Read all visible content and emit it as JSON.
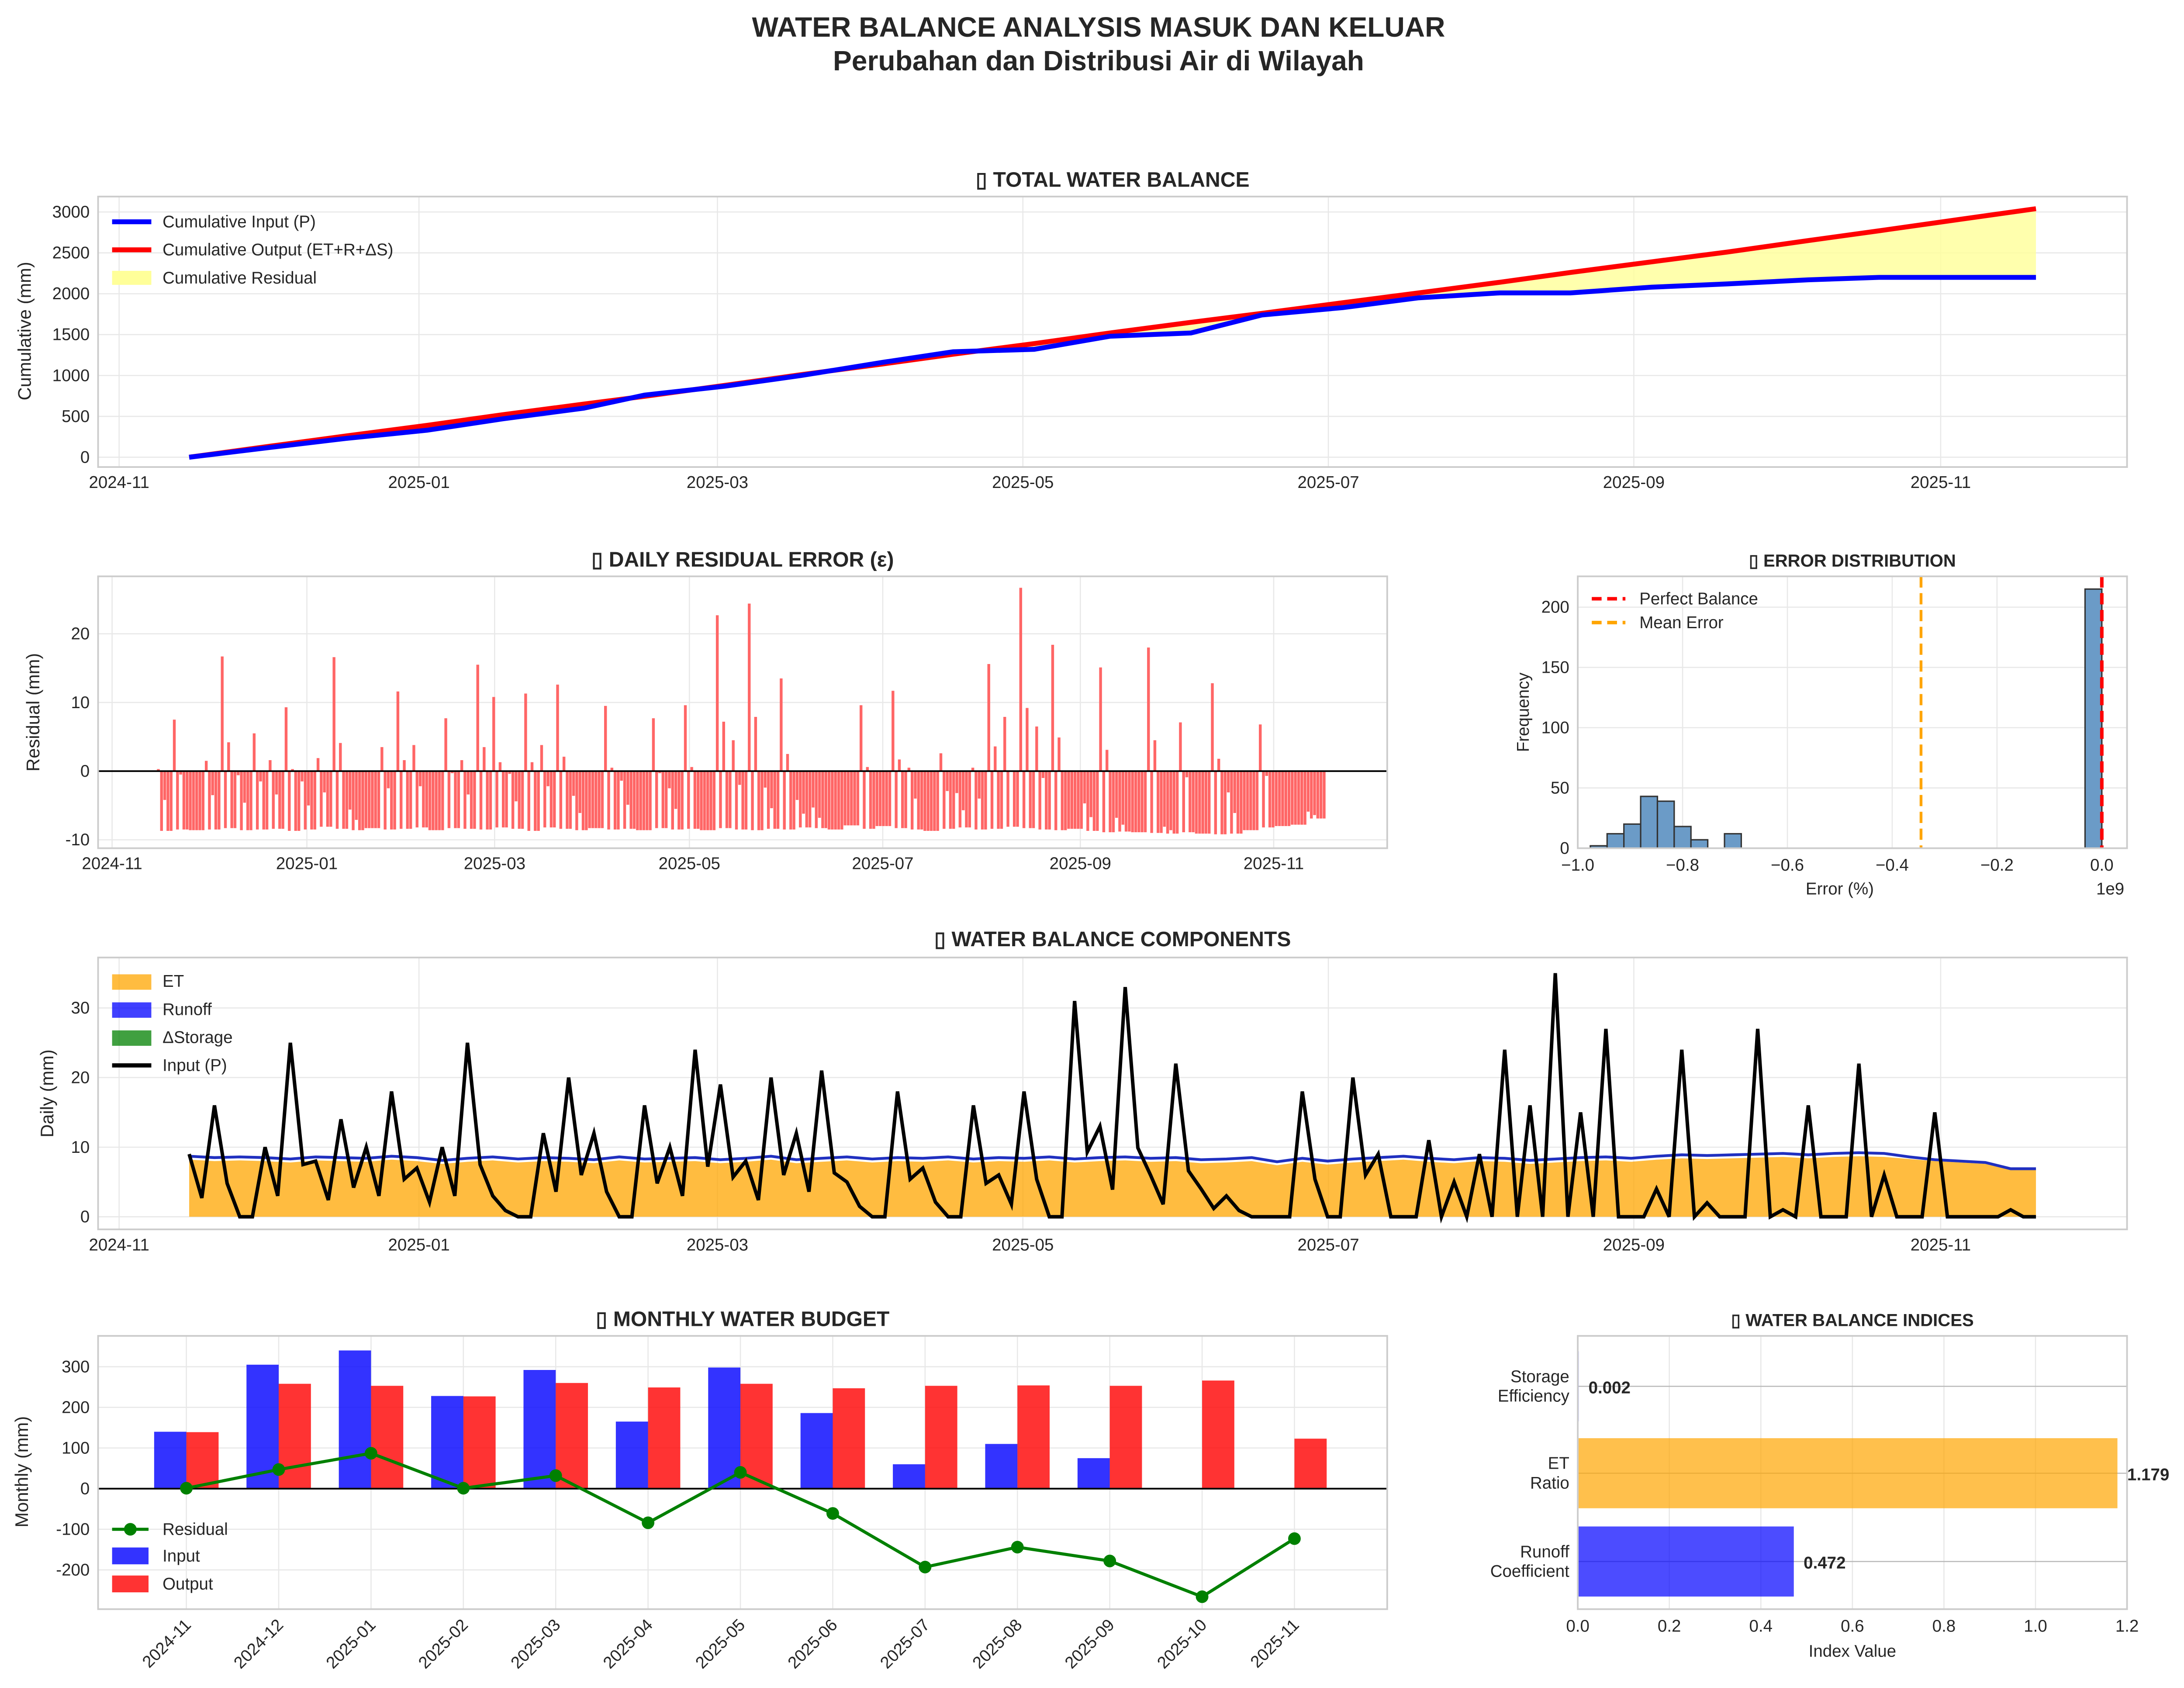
{
  "title": {
    "line1": "WATER BALANCE ANALYSIS MASUK DAN KELUAR",
    "line2": "Perubahan dan Distribusi Air di Wilayah"
  },
  "colors": {
    "input": "#0000ff",
    "output": "#ff0000",
    "residual_fill": "#ffff99",
    "et": "#ffa500",
    "runoff": "#0000ff",
    "storage": "#008000",
    "hist": "#6b9bc7",
    "mean": "#ffa500"
  },
  "chart_data": [
    {
      "id": "total",
      "type": "line",
      "title": "▯ TOTAL WATER BALANCE",
      "ylabel": "Cumulative (mm)",
      "xticks": [
        "2024-11",
        "2025-01",
        "2025-03",
        "2025-05",
        "2025-07",
        "2025-09",
        "2025-11"
      ],
      "yticks": [
        0,
        500,
        1000,
        1500,
        2000,
        2500,
        3000
      ],
      "ylim": [
        -150,
        3300
      ],
      "x_days": [
        0,
        16,
        31,
        47,
        62,
        78,
        90,
        106,
        121,
        137,
        151,
        167,
        182,
        198,
        212,
        228,
        243,
        259,
        273,
        289,
        304,
        320,
        334,
        350,
        365
      ],
      "series": [
        {
          "name": "Cumulative Input (P)",
          "values": [
            0,
            120,
            230,
            330,
            470,
            600,
            760,
            870,
            1000,
            1160,
            1290,
            1320,
            1480,
            1520,
            1740,
            1830,
            1950,
            2010,
            2010,
            2080,
            2120,
            2170,
            2200,
            2200,
            2200
          ]
        },
        {
          "name": "Cumulative Output (ET+R+ΔS)",
          "values": [
            0,
            135,
            260,
            390,
            520,
            650,
            745,
            880,
            1010,
            1140,
            1260,
            1390,
            1520,
            1650,
            1760,
            1890,
            2010,
            2140,
            2260,
            2390,
            2510,
            2650,
            2770,
            2910,
            3040
          ]
        }
      ],
      "fill_legend": "Cumulative Residual",
      "legend": "top-left"
    },
    {
      "id": "residual",
      "type": "bar",
      "title": "▯ DAILY RESIDUAL ERROR (ε)",
      "ylabel": "Residual (mm)",
      "xticks": [
        "2024-11",
        "2025-01",
        "2025-03",
        "2025-05",
        "2025-07",
        "2025-09",
        "2025-11"
      ],
      "yticks": [
        -10,
        0,
        10,
        20
      ],
      "ylim": [
        -11,
        28
      ]
    },
    {
      "id": "hist",
      "type": "bar",
      "title": "▯ ERROR DISTRIBUTION",
      "xlabel": "Error (%)",
      "ylabel": "Frequency",
      "offset_text": "1e9",
      "xticks": [
        "−1.0",
        "−0.8",
        "−0.6",
        "−0.4",
        "−0.2",
        "0.0"
      ],
      "xtick_values": [
        -1.0,
        -0.8,
        -0.6,
        -0.4,
        -0.2,
        0.0
      ],
      "yticks": [
        0,
        50,
        100,
        150,
        200
      ],
      "ylim": [
        0,
        225
      ],
      "xlim": [
        -1.0,
        0.03
      ],
      "bin_width": 0.032,
      "bins": [
        -0.976,
        -0.944,
        -0.912,
        -0.88,
        -0.848,
        -0.816,
        -0.784,
        -0.72,
        -0.032
      ],
      "counts": [
        2,
        12,
        20,
        43,
        39,
        18,
        7,
        12,
        215
      ],
      "perfect_balance": 0.0,
      "mean_error": -0.345,
      "legend": [
        "Perfect Balance",
        "Mean Error"
      ]
    },
    {
      "id": "components",
      "type": "area",
      "title": "▯ WATER BALANCE COMPONENTS",
      "ylabel": "Daily (mm)",
      "xticks": [
        "2024-11",
        "2025-01",
        "2025-03",
        "2025-05",
        "2025-07",
        "2025-09",
        "2025-11"
      ],
      "yticks": [
        0,
        10,
        20,
        30
      ],
      "ylim": [
        -2,
        37
      ],
      "step_days": 5,
      "et": [
        8.2,
        8.0,
        8.1,
        8.0,
        7.8,
        8.1,
        8.0,
        7.9,
        8.2,
        8.0,
        7.6,
        7.9,
        8.1,
        7.8,
        8.0,
        7.9,
        7.7,
        8.1,
        7.8,
        7.9,
        8.0,
        7.7,
        7.9,
        8.2,
        7.7,
        7.9,
        8.1,
        7.8,
        8.0,
        7.9,
        8.1,
        7.8,
        8.0,
        7.9,
        8.1,
        7.8,
        8.0,
        8.1,
        7.9,
        8.0,
        7.7,
        7.8,
        8.0,
        7.4,
        7.9,
        7.5,
        7.8,
        8.0,
        8.2,
        7.9,
        7.7,
        8.0,
        7.9,
        7.6,
        7.8,
        8.0,
        8.1,
        7.9,
        8.2,
        8.4,
        8.3,
        8.4,
        8.5,
        8.6,
        8.4,
        8.6,
        8.7,
        8.6,
        8.3,
        8.0,
        7.8,
        7.6,
        6.8,
        6.8
      ],
      "runoff": [
        0.5,
        0.5,
        0.5,
        0.5,
        0.5,
        0.5,
        0.5,
        0.5,
        0.5,
        0.5,
        0.5,
        0.5,
        0.5,
        0.5,
        0.5,
        0.5,
        0.5,
        0.5,
        0.5,
        0.5,
        0.5,
        0.5,
        0.5,
        0.5,
        0.5,
        0.5,
        0.5,
        0.5,
        0.5,
        0.5,
        0.5,
        0.5,
        0.5,
        0.5,
        0.5,
        0.5,
        0.5,
        0.5,
        0.5,
        0.5,
        0.5,
        0.5,
        0.5,
        0.5,
        0.5,
        0.5,
        0.5,
        0.5,
        0.5,
        0.5,
        0.5,
        0.5,
        0.5,
        0.5,
        0.5,
        0.5,
        0.5,
        0.5,
        0.5,
        0.5,
        0.5,
        0.5,
        0.5,
        0.5,
        0.5,
        0.5,
        0.5,
        0.5,
        0.3,
        0.2,
        0.2,
        0.2,
        0.1,
        0.1
      ],
      "input_p": [
        9,
        16,
        0,
        10,
        25,
        8,
        14,
        10,
        18,
        7,
        10,
        25,
        3,
        0,
        12,
        20,
        12,
        0,
        16,
        10,
        24,
        19,
        8,
        20,
        12,
        21,
        5,
        0,
        18,
        7,
        0,
        16,
        6,
        18,
        0,
        31,
        13,
        33,
        6,
        22,
        4,
        3,
        0,
        0,
        18,
        0,
        20,
        9,
        0,
        11,
        5,
        9,
        24,
        16,
        35,
        15,
        27,
        0,
        4,
        24,
        2,
        0,
        27,
        1,
        16,
        0,
        22,
        6,
        0,
        15,
        0,
        0,
        1,
        0
      ],
      "legend": [
        "ET",
        "Runoff",
        "ΔStorage",
        "Input (P)"
      ]
    },
    {
      "id": "monthly",
      "type": "bar",
      "title": "▯ MONTHLY WATER BUDGET",
      "ylabel": "Monthly (mm)",
      "categories": [
        "2024-11",
        "2024-12",
        "2025-01",
        "2025-02",
        "2025-03",
        "2025-04",
        "2025-05",
        "2025-06",
        "2025-07",
        "2025-08",
        "2025-09",
        "2025-10",
        "2025-11"
      ],
      "yticks": [
        -200,
        -100,
        0,
        100,
        200,
        300
      ],
      "ylim": [
        -295,
        370
      ],
      "series": [
        {
          "name": "Input",
          "values": [
            140,
            305,
            340,
            228,
            292,
            165,
            298,
            186,
            60,
            110,
            75,
            0,
            0
          ]
        },
        {
          "name": "Output",
          "values": [
            139,
            258,
            253,
            227,
            260,
            249,
            258,
            247,
            253,
            254,
            253,
            266,
            123
          ]
        },
        {
          "name": "Residual",
          "values": [
            1,
            47,
            87,
            1,
            32,
            -84,
            40,
            -61,
            -193,
            -144,
            -178,
            -266,
            -123
          ]
        }
      ],
      "legend": "center-left"
    },
    {
      "id": "indices",
      "type": "bar",
      "title": "▯ WATER BALANCE INDICES",
      "xlabel": "Index Value",
      "xticks": [
        "0.0",
        "0.2",
        "0.4",
        "0.6",
        "0.8",
        "1.0",
        "1.2"
      ],
      "xlim": [
        0,
        1.2
      ],
      "categories": [
        [
          "Storage",
          "Efficiency"
        ],
        [
          "ET",
          "Ratio"
        ],
        [
          "Runoff",
          "Coefficient"
        ]
      ],
      "values": [
        0.002,
        1.179,
        0.472
      ],
      "value_labels": [
        "0.002",
        "1.179",
        "0.472"
      ]
    }
  ]
}
